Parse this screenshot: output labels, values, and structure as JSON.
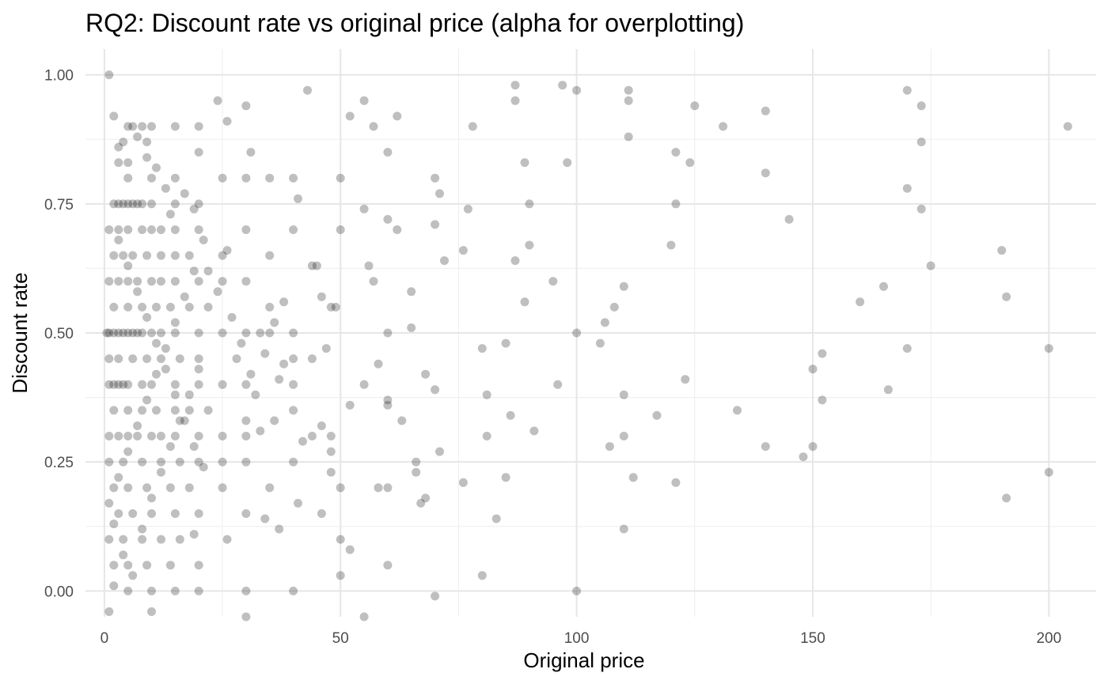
{
  "chart_data": {
    "type": "scatter",
    "title": "RQ2: Discount rate vs original price (alpha for overplotting)",
    "xlabel": "Original price",
    "ylabel": "Discount rate",
    "xlim": [
      -4,
      210
    ],
    "ylim": [
      -0.05,
      1.05
    ],
    "x_ticks": [
      0,
      50,
      100,
      150,
      200
    ],
    "x_tick_labels": [
      "0",
      "50",
      "100",
      "150",
      "200"
    ],
    "y_ticks": [
      0,
      0.25,
      0.5,
      0.75,
      1.0
    ],
    "y_tick_labels": [
      "0.00",
      "0.25",
      "0.50",
      "0.75",
      "1.00"
    ],
    "grid": true,
    "legend": "none",
    "point_color": "#000000",
    "point_alpha": 0.25,
    "points": [
      [
        1,
        1.0
      ],
      [
        20,
        0.9
      ],
      [
        10,
        0.9
      ],
      [
        5,
        0.9
      ],
      [
        15,
        0.9
      ],
      [
        8,
        0.9
      ],
      [
        6,
        0.9
      ],
      [
        9,
        0.87
      ],
      [
        4,
        0.87
      ],
      [
        3,
        0.83
      ],
      [
        5,
        0.8
      ],
      [
        10,
        0.8
      ],
      [
        15,
        0.8
      ],
      [
        20,
        0.85
      ],
      [
        25,
        0.8
      ],
      [
        30,
        0.8
      ],
      [
        35,
        0.8
      ],
      [
        40,
        0.8
      ],
      [
        50,
        0.8
      ],
      [
        70,
        0.8
      ],
      [
        2,
        0.75
      ],
      [
        5,
        0.75
      ],
      [
        8,
        0.75
      ],
      [
        10,
        0.75
      ],
      [
        15,
        0.75
      ],
      [
        20,
        0.75
      ],
      [
        3,
        0.75
      ],
      [
        6,
        0.75
      ],
      [
        4,
        0.75
      ],
      [
        7,
        0.75
      ],
      [
        1,
        0.7
      ],
      [
        3,
        0.7
      ],
      [
        5,
        0.7
      ],
      [
        8,
        0.7
      ],
      [
        10,
        0.7
      ],
      [
        12,
        0.7
      ],
      [
        15,
        0.7
      ],
      [
        20,
        0.7
      ],
      [
        30,
        0.7
      ],
      [
        40,
        0.7
      ],
      [
        2,
        0.65
      ],
      [
        4,
        0.65
      ],
      [
        6,
        0.65
      ],
      [
        9,
        0.65
      ],
      [
        12,
        0.65
      ],
      [
        15,
        0.65
      ],
      [
        18,
        0.65
      ],
      [
        25,
        0.65
      ],
      [
        35,
        0.65
      ],
      [
        45,
        0.63
      ],
      [
        1,
        0.6
      ],
      [
        3,
        0.6
      ],
      [
        5,
        0.6
      ],
      [
        7,
        0.6
      ],
      [
        10,
        0.6
      ],
      [
        12,
        0.6
      ],
      [
        15,
        0.6
      ],
      [
        20,
        0.6
      ],
      [
        25,
        0.6
      ],
      [
        30,
        0.6
      ],
      [
        2,
        0.55
      ],
      [
        5,
        0.55
      ],
      [
        8,
        0.55
      ],
      [
        11,
        0.55
      ],
      [
        14,
        0.55
      ],
      [
        18,
        0.55
      ],
      [
        22,
        0.55
      ],
      [
        35,
        0.55
      ],
      [
        48,
        0.55
      ],
      [
        65,
        0.58
      ],
      [
        0.5,
        0.5
      ],
      [
        1,
        0.5
      ],
      [
        2,
        0.5
      ],
      [
        3,
        0.5
      ],
      [
        4,
        0.5
      ],
      [
        5,
        0.5
      ],
      [
        6,
        0.5
      ],
      [
        7,
        0.5
      ],
      [
        8,
        0.5
      ],
      [
        10,
        0.5
      ],
      [
        12,
        0.5
      ],
      [
        15,
        0.5
      ],
      [
        20,
        0.5
      ],
      [
        25,
        0.5
      ],
      [
        30,
        0.5
      ],
      [
        33,
        0.5
      ],
      [
        35,
        0.5
      ],
      [
        40,
        0.5
      ],
      [
        60,
        0.5
      ],
      [
        100,
        0.5
      ],
      [
        1,
        0.45
      ],
      [
        3,
        0.45
      ],
      [
        6,
        0.45
      ],
      [
        9,
        0.45
      ],
      [
        12,
        0.45
      ],
      [
        16,
        0.45
      ],
      [
        20,
        0.45
      ],
      [
        28,
        0.45
      ],
      [
        40,
        0.45
      ],
      [
        80,
        0.47
      ],
      [
        1,
        0.4
      ],
      [
        2,
        0.4
      ],
      [
        3,
        0.4
      ],
      [
        4,
        0.4
      ],
      [
        5,
        0.4
      ],
      [
        8,
        0.4
      ],
      [
        10,
        0.4
      ],
      [
        15,
        0.4
      ],
      [
        20,
        0.4
      ],
      [
        25,
        0.4
      ],
      [
        30,
        0.4
      ],
      [
        37,
        0.41
      ],
      [
        40,
        0.4
      ],
      [
        55,
        0.4
      ],
      [
        96,
        0.4
      ],
      [
        123,
        0.41
      ],
      [
        166,
        0.39
      ],
      [
        2,
        0.35
      ],
      [
        5,
        0.35
      ],
      [
        8,
        0.35
      ],
      [
        11,
        0.35
      ],
      [
        15,
        0.35
      ],
      [
        18,
        0.35
      ],
      [
        22,
        0.35
      ],
      [
        30,
        0.33
      ],
      [
        40,
        0.35
      ],
      [
        52,
        0.36
      ],
      [
        60,
        0.36
      ],
      [
        86,
        0.34
      ],
      [
        134,
        0.35
      ],
      [
        1,
        0.3
      ],
      [
        3,
        0.3
      ],
      [
        5,
        0.3
      ],
      [
        7,
        0.3
      ],
      [
        10,
        0.3
      ],
      [
        12,
        0.3
      ],
      [
        15,
        0.3
      ],
      [
        20,
        0.3
      ],
      [
        25,
        0.3
      ],
      [
        30,
        0.3
      ],
      [
        33,
        0.31
      ],
      [
        48,
        0.3
      ],
      [
        81,
        0.3
      ],
      [
        91,
        0.31
      ],
      [
        110,
        0.3
      ],
      [
        117,
        0.34
      ],
      [
        152,
        0.37
      ],
      [
        152,
        0.46
      ],
      [
        1,
        0.25
      ],
      [
        4,
        0.25
      ],
      [
        8,
        0.25
      ],
      [
        12,
        0.25
      ],
      [
        16,
        0.25
      ],
      [
        20,
        0.25
      ],
      [
        25,
        0.25
      ],
      [
        30,
        0.25
      ],
      [
        40,
        0.25
      ],
      [
        48,
        0.23
      ],
      [
        58,
        0.2
      ],
      [
        66,
        0.23
      ],
      [
        107,
        0.28
      ],
      [
        140,
        0.28
      ],
      [
        148,
        0.26
      ],
      [
        2,
        0.2
      ],
      [
        5,
        0.2
      ],
      [
        9,
        0.2
      ],
      [
        14,
        0.2
      ],
      [
        18,
        0.2
      ],
      [
        25,
        0.2
      ],
      [
        35,
        0.2
      ],
      [
        50,
        0.2
      ],
      [
        60,
        0.2
      ],
      [
        85,
        0.22
      ],
      [
        191,
        0.18
      ],
      [
        3,
        0.15
      ],
      [
        6,
        0.15
      ],
      [
        10,
        0.15
      ],
      [
        15,
        0.15
      ],
      [
        20,
        0.15
      ],
      [
        30,
        0.15
      ],
      [
        37,
        0.12
      ],
      [
        46,
        0.15
      ],
      [
        67,
        0.17
      ],
      [
        68,
        0.18
      ],
      [
        83,
        0.14
      ],
      [
        1,
        0.1
      ],
      [
        4,
        0.1
      ],
      [
        8,
        0.1
      ],
      [
        12,
        0.1
      ],
      [
        16,
        0.1
      ],
      [
        19,
        0.11
      ],
      [
        26,
        0.1
      ],
      [
        50,
        0.1
      ],
      [
        52,
        0.08
      ],
      [
        2,
        0.05
      ],
      [
        5,
        0.05
      ],
      [
        9,
        0.05
      ],
      [
        14,
        0.05
      ],
      [
        20,
        0.05
      ],
      [
        2,
        0.01
      ],
      [
        5,
        0.0
      ],
      [
        10,
        0.0
      ],
      [
        15,
        0.0
      ],
      [
        20,
        0.0
      ],
      [
        30,
        0.0
      ],
      [
        40,
        0.0
      ],
      [
        100,
        0.0
      ],
      [
        1,
        -0.04
      ],
      [
        10,
        -0.04
      ],
      [
        30,
        -0.05
      ],
      [
        57,
        0.9
      ],
      [
        97,
        0.98
      ],
      [
        87,
        0.98
      ],
      [
        111,
        0.97
      ],
      [
        111,
        0.95
      ],
      [
        111,
        0.88
      ],
      [
        131,
        0.9
      ],
      [
        140,
        0.81
      ],
      [
        170,
        0.78
      ],
      [
        173,
        0.94
      ],
      [
        173,
        0.74
      ],
      [
        175,
        0.63
      ],
      [
        165,
        0.59
      ],
      [
        108,
        0.55
      ],
      [
        106,
        0.52
      ],
      [
        110,
        0.59
      ],
      [
        77,
        0.74
      ],
      [
        71,
        0.77
      ],
      [
        72,
        0.64
      ],
      [
        87,
        0.64
      ],
      [
        90,
        0.75
      ],
      [
        90,
        0.67
      ],
      [
        95,
        0.6
      ],
      [
        57,
        0.6
      ],
      [
        56,
        0.63
      ],
      [
        65,
        0.51
      ],
      [
        60,
        0.72
      ],
      [
        62,
        0.7
      ],
      [
        70,
        0.71
      ],
      [
        60,
        0.37
      ],
      [
        63,
        0.33
      ],
      [
        44,
        0.63
      ],
      [
        46,
        0.57
      ],
      [
        49,
        0.55
      ],
      [
        38,
        0.56
      ],
      [
        41,
        0.76
      ],
      [
        50,
        0.7
      ],
      [
        55,
        0.74
      ],
      [
        42,
        0.29
      ],
      [
        44,
        0.3
      ],
      [
        24,
        0.95
      ],
      [
        30,
        0.94
      ],
      [
        31,
        0.85
      ],
      [
        26,
        0.91
      ],
      [
        43,
        0.97
      ],
      [
        55,
        0.95
      ],
      [
        52,
        0.92
      ],
      [
        60,
        0.85
      ],
      [
        62,
        0.92
      ],
      [
        78,
        0.9
      ],
      [
        87,
        0.95
      ],
      [
        100,
        0.97
      ],
      [
        125,
        0.94
      ],
      [
        140,
        0.93
      ],
      [
        170,
        0.97
      ],
      [
        173,
        0.87
      ],
      [
        204,
        0.9
      ],
      [
        190,
        0.66
      ],
      [
        191,
        0.57
      ],
      [
        160,
        0.56
      ],
      [
        170,
        0.47
      ],
      [
        200,
        0.47
      ],
      [
        200,
        0.23
      ],
      [
        150,
        0.43
      ],
      [
        150,
        0.28
      ],
      [
        121,
        0.21
      ],
      [
        112,
        0.22
      ],
      [
        110,
        0.12
      ],
      [
        110,
        0.38
      ],
      [
        105,
        0.48
      ],
      [
        121,
        0.85
      ],
      [
        121,
        0.75
      ],
      [
        120,
        0.67
      ],
      [
        124,
        0.83
      ],
      [
        145,
        0.72
      ],
      [
        98,
        0.83
      ],
      [
        89,
        0.83
      ],
      [
        89,
        0.56
      ],
      [
        85,
        0.48
      ],
      [
        81,
        0.38
      ],
      [
        76,
        0.66
      ],
      [
        76,
        0.21
      ],
      [
        80,
        0.03
      ],
      [
        70,
        -0.01
      ],
      [
        60,
        0.05
      ],
      [
        50,
        0.03
      ],
      [
        55,
        -0.05
      ],
      [
        46,
        0.32
      ],
      [
        48,
        0.27
      ],
      [
        41,
        0.17
      ],
      [
        34,
        0.14
      ],
      [
        36,
        0.33
      ],
      [
        38,
        0.44
      ],
      [
        44,
        0.45
      ],
      [
        47,
        0.47
      ],
      [
        58,
        0.44
      ],
      [
        68,
        0.42
      ],
      [
        70,
        0.39
      ],
      [
        71,
        0.27
      ],
      [
        66,
        0.25
      ],
      [
        2,
        0.92
      ],
      [
        3,
        0.86
      ],
      [
        5,
        0.83
      ],
      [
        7,
        0.88
      ],
      [
        9,
        0.84
      ],
      [
        11,
        0.82
      ],
      [
        13,
        0.78
      ],
      [
        14,
        0.73
      ],
      [
        17,
        0.77
      ],
      [
        19,
        0.74
      ],
      [
        21,
        0.68
      ],
      [
        22,
        0.62
      ],
      [
        24,
        0.58
      ],
      [
        26,
        0.66
      ],
      [
        27,
        0.53
      ],
      [
        29,
        0.48
      ],
      [
        31,
        0.42
      ],
      [
        32,
        0.38
      ],
      [
        34,
        0.46
      ],
      [
        36,
        0.52
      ],
      [
        1,
        0.17
      ],
      [
        3,
        0.22
      ],
      [
        5,
        0.27
      ],
      [
        7,
        0.32
      ],
      [
        9,
        0.37
      ],
      [
        11,
        0.42
      ],
      [
        13,
        0.47
      ],
      [
        15,
        0.52
      ],
      [
        17,
        0.57
      ],
      [
        19,
        0.62
      ],
      [
        2,
        0.13
      ],
      [
        4,
        0.07
      ],
      [
        6,
        0.03
      ],
      [
        8,
        0.12
      ],
      [
        10,
        0.18
      ],
      [
        12,
        0.23
      ],
      [
        14,
        0.28
      ],
      [
        16,
        0.33
      ],
      [
        18,
        0.38
      ],
      [
        20,
        0.43
      ],
      [
        3,
        0.68
      ],
      [
        5,
        0.63
      ],
      [
        7,
        0.58
      ],
      [
        9,
        0.53
      ],
      [
        11,
        0.48
      ],
      [
        13,
        0.43
      ],
      [
        15,
        0.38
      ],
      [
        17,
        0.33
      ],
      [
        19,
        0.28
      ],
      [
        21,
        0.24
      ]
    ]
  }
}
